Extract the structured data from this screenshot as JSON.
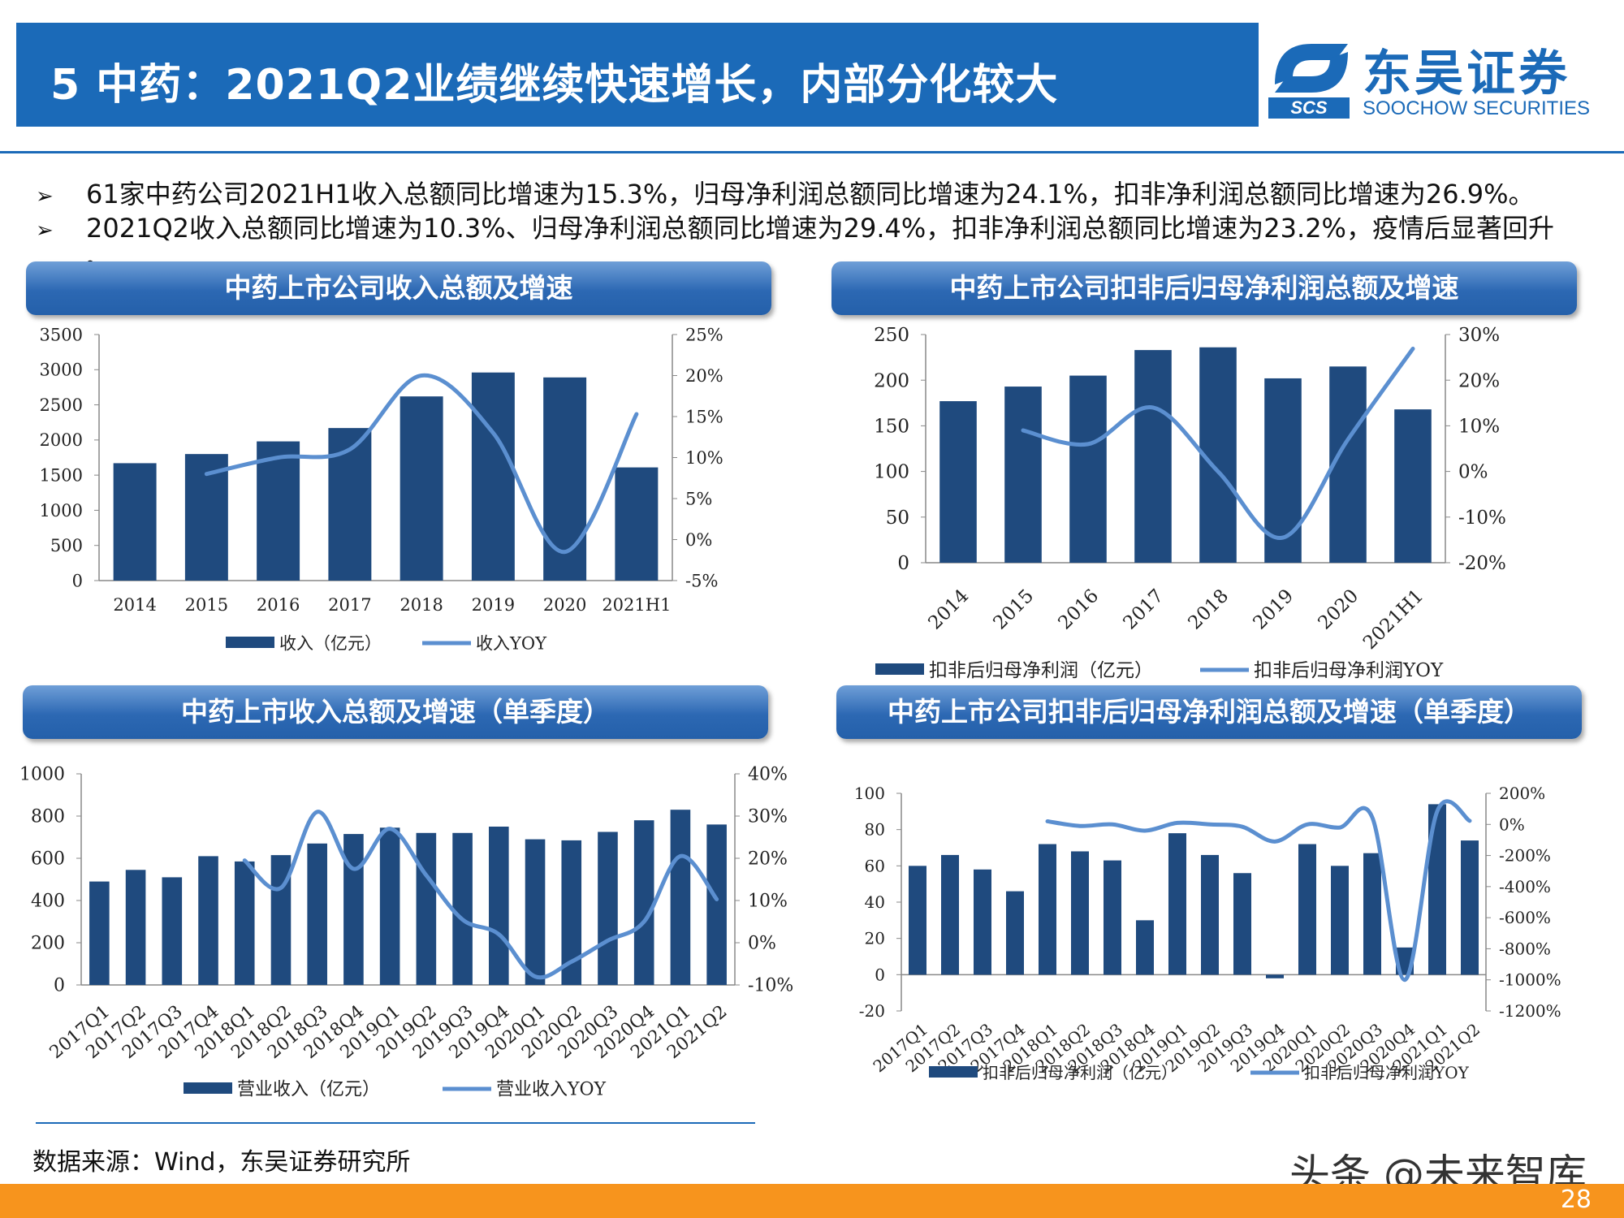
{
  "header": {
    "title": "5 中药：2021Q2业绩继续快速增长，内部分化较大",
    "logo_cn": "东吴证券",
    "logo_en": "SOOCHOW SECURITIES",
    "logo_abbr": "SCS",
    "brand_color": "#1b6ab8"
  },
  "bullets": [
    "61家中药公司2021H1收入总额同比增速为15.3%，归母净利润总额同比增速为24.1%，扣非净利润总额同比增速为26.9%。",
    "2021Q2收入总额同比增速为10.3%、归母净利润总额同比增速为29.4%，扣非净利润总额同比增速为23.2%，疫情后显著回升",
    "。"
  ],
  "panels": {
    "p1": "中药上市公司收入总额及增速",
    "p2": "中药上市公司扣非后归母净利润总额及增速",
    "p3": "中药上市收入总额及增速（单季度）",
    "p4": "中药上市公司扣非后归母净利润总额及增速（单季度）"
  },
  "chart_data": [
    {
      "type": "bar",
      "categories": [
        "2014",
        "2015",
        "2016",
        "2017",
        "2018",
        "2019",
        "2020",
        "2021H1"
      ],
      "series": [
        {
          "name": "收入（亿元）",
          "type": "bar",
          "axis": "left",
          "values": [
            1670,
            1800,
            1980,
            2170,
            2620,
            2960,
            2890,
            1610
          ]
        },
        {
          "name": "收入YOY",
          "type": "line",
          "axis": "right",
          "values": [
            null,
            8.0,
            10.0,
            11.0,
            20.0,
            13.0,
            -1.5,
            15.3
          ]
        }
      ],
      "ylim": [
        0,
        3500
      ],
      "yticks": [
        "0",
        "500",
        "1000",
        "1500",
        "2000",
        "2500",
        "3000",
        "3500"
      ],
      "y2lim": [
        -5,
        25
      ],
      "y2ticks": [
        "-5%",
        "0%",
        "5%",
        "10%",
        "15%",
        "20%",
        "25%"
      ],
      "grid": false,
      "legend": "bottom",
      "color_bar": "#1f4a7e",
      "color_line": "#5b8fd0"
    },
    {
      "type": "bar",
      "categories": [
        "2014",
        "2015",
        "2016",
        "2017",
        "2018",
        "2019",
        "2020",
        "2021H1"
      ],
      "series": [
        {
          "name": "扣非后归母净利润（亿元）",
          "type": "bar",
          "axis": "left",
          "values": [
            177,
            193,
            205,
            233,
            236,
            202,
            215,
            168
          ]
        },
        {
          "name": "扣非后归母净利润YOY",
          "type": "line",
          "axis": "right",
          "values": [
            null,
            9.0,
            6.0,
            14.0,
            0.0,
            -14.5,
            7.0,
            26.9
          ]
        }
      ],
      "ylim": [
        0,
        250
      ],
      "yticks": [
        "0",
        "50",
        "100",
        "150",
        "200",
        "250"
      ],
      "y2lim": [
        -20,
        30
      ],
      "y2ticks": [
        "-20%",
        "-10%",
        "0%",
        "10%",
        "20%",
        "30%"
      ],
      "grid": false,
      "legend": "bottom",
      "color_bar": "#1f4a7e",
      "color_line": "#5b8fd0"
    },
    {
      "type": "bar",
      "categories": [
        "2017Q1",
        "2017Q2",
        "2017Q3",
        "2017Q4",
        "2018Q1",
        "2018Q2",
        "2018Q3",
        "2018Q4",
        "2019Q1",
        "2019Q2",
        "2019Q3",
        "2019Q4",
        "2020Q1",
        "2020Q2",
        "2020Q3",
        "2020Q4",
        "2021Q1",
        "2021Q2"
      ],
      "series": [
        {
          "name": "营业收入（亿元）",
          "type": "bar",
          "axis": "left",
          "values": [
            490,
            545,
            510,
            610,
            585,
            615,
            670,
            715,
            745,
            720,
            720,
            750,
            690,
            685,
            725,
            780,
            830,
            760
          ]
        },
        {
          "name": "营业收入YOY",
          "type": "line",
          "axis": "right",
          "values": [
            null,
            null,
            null,
            null,
            19.5,
            13.0,
            31.0,
            17.5,
            27.0,
            16.0,
            5.5,
            2.0,
            -8.0,
            -4.5,
            0.5,
            5.0,
            20.5,
            10.3
          ]
        }
      ],
      "ylim": [
        0,
        1000
      ],
      "yticks": [
        "0",
        "200",
        "400",
        "600",
        "800",
        "1000"
      ],
      "y2lim": [
        -10,
        40
      ],
      "y2ticks": [
        "-10%",
        "0%",
        "10%",
        "20%",
        "30%",
        "40%"
      ],
      "grid": false,
      "legend": "bottom",
      "color_bar": "#1f4a7e",
      "color_line": "#5b8fd0"
    },
    {
      "type": "bar",
      "categories": [
        "2017Q1",
        "2017Q2",
        "2017Q3",
        "2017Q4",
        "2018Q1",
        "2018Q2",
        "2018Q3",
        "2018Q4",
        "2019Q1",
        "2019Q2",
        "2019Q3",
        "2019Q4",
        "2020Q1",
        "2020Q2",
        "2020Q3",
        "2020Q4",
        "2021Q1",
        "2021Q2"
      ],
      "series": [
        {
          "name": "扣非后归母净利润（亿元）",
          "type": "bar",
          "axis": "left",
          "values": [
            60,
            66,
            58,
            46,
            72,
            68,
            63,
            30,
            78,
            66,
            56,
            -2,
            72,
            60,
            67,
            15,
            94,
            74
          ]
        },
        {
          "name": "扣非后归母净利润YOY",
          "type": "line",
          "axis": "right",
          "values": [
            null,
            null,
            null,
            null,
            20,
            -10,
            0,
            -40,
            10,
            0,
            -15,
            -110,
            0,
            -20,
            45,
            -1000,
            85,
            23.2
          ]
        }
      ],
      "ylim": [
        -20,
        100
      ],
      "yticks": [
        "-20",
        "0",
        "20",
        "40",
        "60",
        "80",
        "100"
      ],
      "y2lim": [
        -1200,
        200
      ],
      "y2ticks": [
        "-1200%",
        "-1000%",
        "-800%",
        "-600%",
        "-400%",
        "-200%",
        "0%",
        "200%"
      ],
      "grid": false,
      "legend": "bottom",
      "color_bar": "#1f4a7e",
      "color_line": "#5b8fd0"
    }
  ],
  "footer": {
    "source": "数据来源：Wind，东吴证券研究所",
    "watermark": "头条 @未来智库",
    "page": "28",
    "bar_color": "#f7941d"
  }
}
